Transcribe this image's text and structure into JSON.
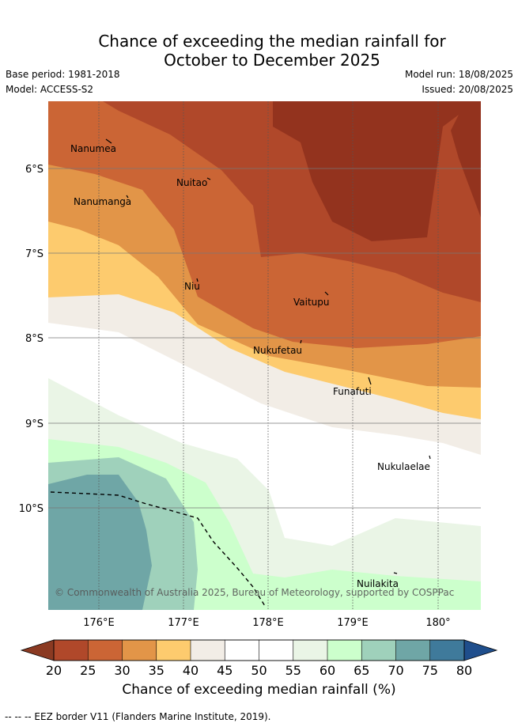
{
  "header": {
    "title_line1": "Chance of exceeding the median rainfall for",
    "title_line2": "October to December 2025",
    "base_period": "Base period: 1981-2018",
    "model": "Model: ACCESS-S2",
    "model_run": "Model run: 18/08/2025",
    "issued": "Issued: 20/08/2025"
  },
  "map": {
    "lat_labels": [
      "6°S",
      "7°S",
      "8°S",
      "9°S",
      "10°S"
    ],
    "lon_labels": [
      "176°E",
      "177°E",
      "178°E",
      "179°E",
      "180°"
    ],
    "places": [
      {
        "name": "Nanumea"
      },
      {
        "name": "Nuitao"
      },
      {
        "name": "Nanumanga"
      },
      {
        "name": "Niu"
      },
      {
        "name": "Vaitupu"
      },
      {
        "name": "Nukufetau"
      },
      {
        "name": "Funafuti"
      },
      {
        "name": "Nukulaelae"
      },
      {
        "name": "Nuilakita"
      }
    ],
    "copyright": "© Commonwealth of Australia 2025, Bureau of Meteorology, supported by COSPPac"
  },
  "colorbar": {
    "ticks": [
      "20",
      "25",
      "30",
      "35",
      "40",
      "45",
      "50",
      "55",
      "60",
      "65",
      "70",
      "75",
      "80"
    ],
    "colors": [
      "#b0482a",
      "#cb6535",
      "#e29548",
      "#fdcb6e",
      "#f2ede6",
      "#ffffff",
      "#ffffff",
      "#eaf5e6",
      "#ccffcc",
      "#9fd1bb",
      "#6fa6a6",
      "#3f7a9b"
    ],
    "low_extend_color": "#8b3a22",
    "high_extend_color": "#1f4e8c",
    "label": "Chance of exceeding median rainfall (%)"
  },
  "footnote": "-- -- -- EEZ border V11 (Flanders Marine Institute, 2019)."
}
